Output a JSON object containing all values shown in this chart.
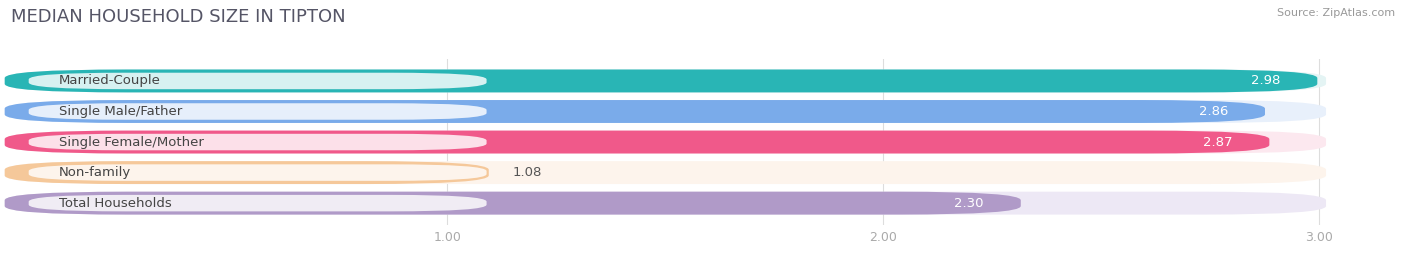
{
  "title": "MEDIAN HOUSEHOLD SIZE IN TIPTON",
  "source": "Source: ZipAtlas.com",
  "categories": [
    "Married-Couple",
    "Single Male/Father",
    "Single Female/Mother",
    "Non-family",
    "Total Households"
  ],
  "values": [
    2.98,
    2.86,
    2.87,
    1.08,
    2.3
  ],
  "bar_colors": [
    "#29b5b5",
    "#7aabea",
    "#f0598a",
    "#f5c89a",
    "#b09ac8"
  ],
  "bar_bg_colors": [
    "#e4f4f4",
    "#e8f0fb",
    "#fce8ef",
    "#fdf4ec",
    "#ede8f5"
  ],
  "xlim_min": 0,
  "xlim_max": 3.15,
  "data_max": 3.0,
  "xticks": [
    1.0,
    2.0,
    3.0
  ],
  "title_fontsize": 13,
  "label_fontsize": 9.5,
  "value_fontsize": 9.5,
  "background_color": "#ffffff",
  "bar_height": 0.72,
  "bar_gap": 0.28
}
